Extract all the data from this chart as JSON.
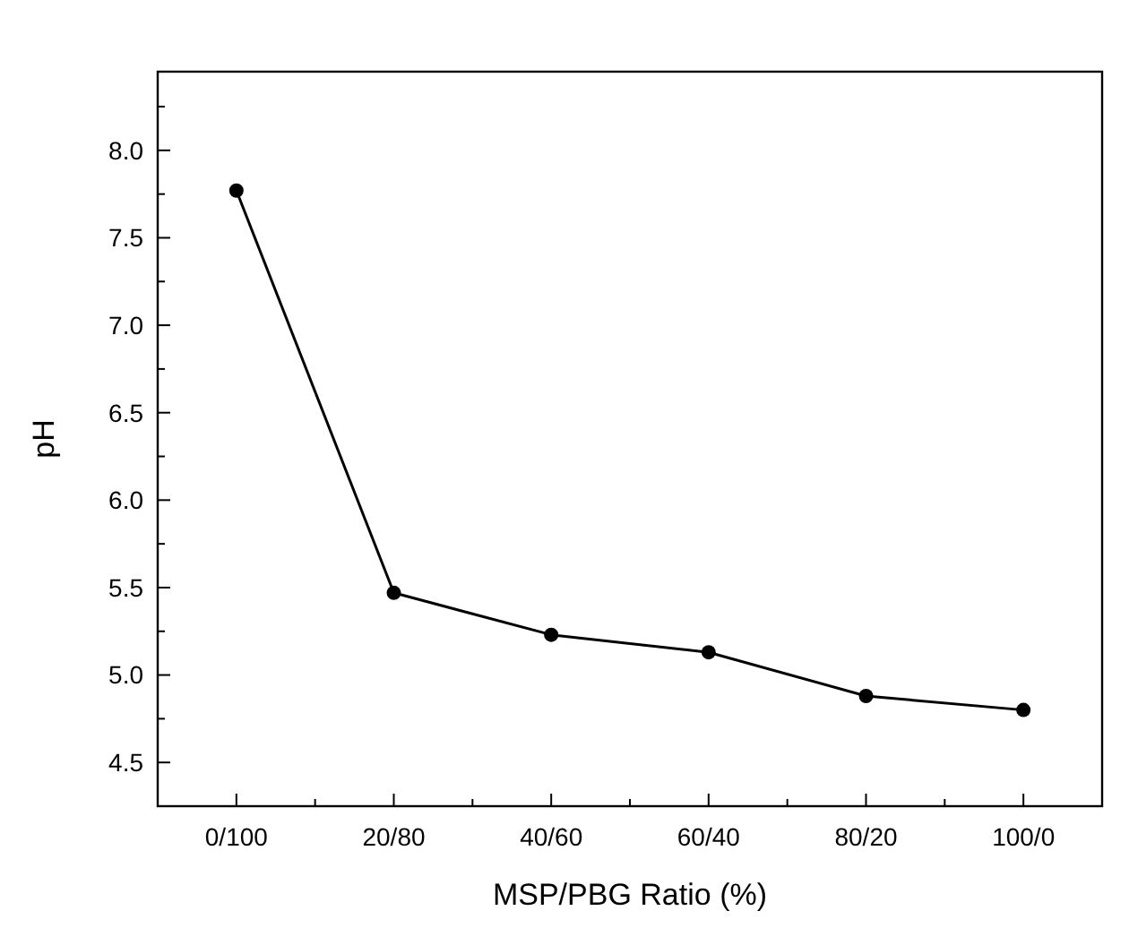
{
  "chart_data": {
    "type": "line",
    "xlabel": "MSP/PBG Ratio (%)",
    "ylabel": "pH",
    "categories": [
      "0/100",
      "20/80",
      "40/60",
      "60/40",
      "80/20",
      "100/0"
    ],
    "series": [
      {
        "color": "#000000",
        "values": [
          7.77,
          5.47,
          5.23,
          5.13,
          4.88,
          4.8
        ]
      }
    ],
    "ylim": [
      4.25,
      8.45
    ],
    "yticks": [
      {
        "value": 4.5,
        "label": "4.5"
      },
      {
        "value": 4.75,
        "label": null
      },
      {
        "value": 5.0,
        "label": "5.0"
      },
      {
        "value": 5.25,
        "label": null
      },
      {
        "value": 5.5,
        "label": "5.5"
      },
      {
        "value": 5.75,
        "label": null
      },
      {
        "value": 6.0,
        "label": "6.0"
      },
      {
        "value": 6.25,
        "label": null
      },
      {
        "value": 6.5,
        "label": "6.5"
      },
      {
        "value": 6.75,
        "label": null
      },
      {
        "value": 7.0,
        "label": "7.0"
      },
      {
        "value": 7.25,
        "label": null
      },
      {
        "value": 7.5,
        "label": "7.5"
      },
      {
        "value": 7.75,
        "label": null
      },
      {
        "value": 8.0,
        "label": "8.0"
      },
      {
        "value": 8.25,
        "label": null
      }
    ],
    "marker": "circle",
    "line_style": "solid"
  }
}
